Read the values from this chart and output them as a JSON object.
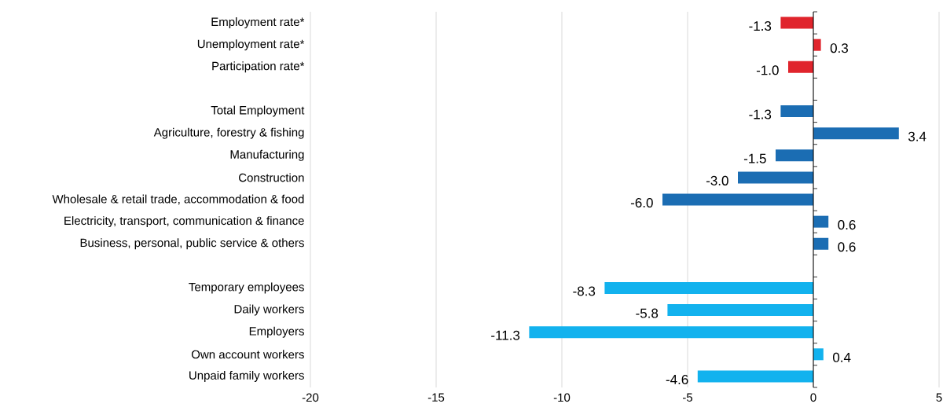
{
  "chart_data": {
    "type": "bar",
    "orientation": "horizontal",
    "categories": [
      "Employment rate*",
      "Unemployment rate*",
      "Participation rate*",
      null,
      "Total Employment",
      "Agriculture, forestry & fishing",
      "Manufacturing",
      "Construction",
      "Wholesale & retail trade, accommodation & food",
      "Electricity, transport, communication & finance",
      "Business, personal, public service & others",
      null,
      "Temporary employees",
      "Daily workers",
      "Employers",
      "Own account workers",
      "Unpaid family workers"
    ],
    "values": [
      -1.3,
      0.3,
      -1.0,
      null,
      -1.3,
      3.4,
      -1.5,
      -3.0,
      -6.0,
      0.6,
      0.6,
      null,
      -8.3,
      -5.8,
      -11.3,
      0.4,
      -4.6
    ],
    "value_labels": [
      "-1.3",
      "0.3",
      "-1.0",
      null,
      "-1.3",
      "3.4",
      "-1.5",
      "-3.0",
      "-6.0",
      "0.6",
      "0.6",
      null,
      "-8.3",
      "-5.8",
      "-11.3",
      "0.4",
      "-4.6"
    ],
    "colors": [
      "#e0242c",
      "#e0242c",
      "#e0242c",
      null,
      "#1b6db3",
      "#1b6db3",
      "#1b6db3",
      "#1b6db3",
      "#1b6db3",
      "#1b6db3",
      "#1b6db3",
      null,
      "#12b2ee",
      "#12b2ee",
      "#12b2ee",
      "#12b2ee",
      "#12b2ee"
    ],
    "xlim": [
      -20,
      5
    ],
    "xticks": [
      -20,
      -15,
      -10,
      -5,
      0,
      5
    ],
    "grid": "x"
  }
}
